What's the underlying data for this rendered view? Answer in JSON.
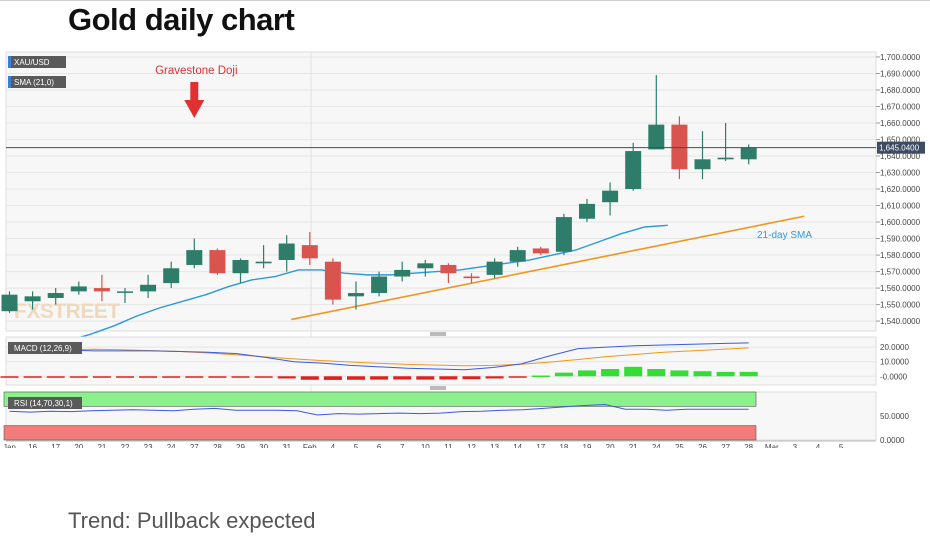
{
  "page": {
    "title": "Gold daily chart",
    "trend_text": "Trend: Pullback expected"
  },
  "colors": {
    "bull": "#2e7d6a",
    "bear": "#d9534f",
    "sma": "#2b9ad6",
    "trendline": "#f0961e",
    "price_line": "#3d4c63",
    "annotation": "#e03030",
    "macd_line": "#3b5bdb",
    "signal_line": "#f0961e",
    "hist_pos": "#33dd33",
    "hist_neg": "#e02020",
    "rsi_line": "#3b5bdb",
    "rsi_overbought_band": "#8cf08c",
    "rsi_oversold_band": "#f27b7b",
    "panel_bg": "#f7f7f7",
    "grid": "#e6e6e6"
  },
  "chart_data": [
    {
      "type": "candlestick",
      "title": "XAU/USD",
      "indicator_label": "SMA (21,0)",
      "watermark": "FXSTREET",
      "current_price_label": "1,645.0400",
      "ylim": [
        1534,
        1703
      ],
      "y_ticks": [
        "1,540.0000",
        "1,550.0000",
        "1,560.0000",
        "1,570.0000",
        "1,580.0000",
        "1,590.0000",
        "1,600.0000",
        "1,610.0000",
        "1,620.0000",
        "1,630.0000",
        "1,640.0000",
        "1,650.0000",
        "1,660.0000",
        "1,670.0000",
        "1,680.0000",
        "1,690.0000",
        "1,700.0000"
      ],
      "x_labels": [
        "Jan",
        "16",
        "17",
        "20",
        "21",
        "22",
        "23",
        "24",
        "27",
        "28",
        "29",
        "30",
        "31",
        "Feb",
        "4",
        "5",
        "6",
        "7",
        "10",
        "11",
        "12",
        "13",
        "14",
        "17",
        "18",
        "19",
        "20",
        "21",
        "24",
        "25",
        "26",
        "27",
        "28",
        "Mar",
        "3",
        "4",
        "5"
      ],
      "candles": [
        {
          "date": "15",
          "o": 1546,
          "h": 1558,
          "l": 1545,
          "c": 1556
        },
        {
          "date": "16",
          "o": 1552,
          "h": 1558,
          "l": 1547,
          "c": 1555
        },
        {
          "date": "17",
          "o": 1554,
          "h": 1560,
          "l": 1550,
          "c": 1557
        },
        {
          "date": "20",
          "o": 1558,
          "h": 1564,
          "l": 1556,
          "c": 1561
        },
        {
          "date": "21",
          "o": 1560,
          "h": 1568,
          "l": 1552,
          "c": 1558
        },
        {
          "date": "22",
          "o": 1558,
          "h": 1560,
          "l": 1551,
          "c": 1558
        },
        {
          "date": "23",
          "o": 1558,
          "h": 1568,
          "l": 1554,
          "c": 1562
        },
        {
          "date": "24",
          "o": 1563,
          "h": 1576,
          "l": 1560,
          "c": 1572
        },
        {
          "date": "27",
          "o": 1574,
          "h": 1590,
          "l": 1572,
          "c": 1583
        },
        {
          "date": "28",
          "o": 1583,
          "h": 1584,
          "l": 1568,
          "c": 1569
        },
        {
          "date": "29",
          "o": 1569,
          "h": 1578,
          "l": 1563,
          "c": 1577
        },
        {
          "date": "30",
          "o": 1575,
          "h": 1586,
          "l": 1572,
          "c": 1576
        },
        {
          "date": "31",
          "o": 1577,
          "h": 1592,
          "l": 1570,
          "c": 1587
        },
        {
          "date": "3",
          "o": 1586,
          "h": 1594,
          "l": 1574,
          "c": 1578
        },
        {
          "date": "4",
          "o": 1576,
          "h": 1578,
          "l": 1550,
          "c": 1553
        },
        {
          "date": "5",
          "o": 1555,
          "h": 1564,
          "l": 1547,
          "c": 1557
        },
        {
          "date": "6",
          "o": 1557,
          "h": 1570,
          "l": 1555,
          "c": 1567
        },
        {
          "date": "7",
          "o": 1567,
          "h": 1576,
          "l": 1564,
          "c": 1571
        },
        {
          "date": "10",
          "o": 1572,
          "h": 1577,
          "l": 1567,
          "c": 1575
        },
        {
          "date": "11",
          "o": 1574,
          "h": 1575,
          "l": 1563,
          "c": 1569
        },
        {
          "date": "12",
          "o": 1567,
          "h": 1569,
          "l": 1563,
          "c": 1566
        },
        {
          "date": "13",
          "o": 1568,
          "h": 1578,
          "l": 1566,
          "c": 1576
        },
        {
          "date": "14",
          "o": 1576,
          "h": 1585,
          "l": 1573,
          "c": 1583
        },
        {
          "date": "17",
          "o": 1584,
          "h": 1585,
          "l": 1580,
          "c": 1581
        },
        {
          "date": "18",
          "o": 1582,
          "h": 1605,
          "l": 1580,
          "c": 1603
        },
        {
          "date": "19",
          "o": 1602,
          "h": 1614,
          "l": 1600,
          "c": 1611
        },
        {
          "date": "20",
          "o": 1612,
          "h": 1624,
          "l": 1604,
          "c": 1619
        },
        {
          "date": "21",
          "o": 1620,
          "h": 1648,
          "l": 1619,
          "c": 1643
        },
        {
          "date": "24",
          "o": 1644,
          "h": 1689,
          "l": 1644,
          "c": 1659
        },
        {
          "date": "25",
          "o": 1659,
          "h": 1664,
          "l": 1626,
          "c": 1632
        },
        {
          "date": "26",
          "o": 1632,
          "h": 1655,
          "l": 1626,
          "c": 1638
        },
        {
          "date": "27",
          "o": 1638,
          "h": 1660,
          "l": 1637,
          "c": 1639
        },
        {
          "date": "28",
          "o": 1638,
          "h": 1647,
          "l": 1635,
          "c": 1645
        }
      ],
      "sma": [
        1528,
        1532,
        1537,
        1543,
        1548,
        1552,
        1556,
        1561,
        1565,
        1567,
        1571,
        1571,
        1569,
        1568,
        1568,
        1569,
        1570,
        1571,
        1573,
        1575,
        1577,
        1580,
        1583,
        1588,
        1593,
        1597,
        1598
      ],
      "annotations": [
        {
          "text": "Gravestone Doji",
          "candle_date": "27"
        },
        {
          "text": "21-day SMA"
        }
      ]
    },
    {
      "type": "macd",
      "label": "MACD (12,26,9)",
      "y_ticks": [
        "20.0000",
        "10.0000",
        "-0.0000"
      ],
      "ylim": [
        -6,
        27
      ],
      "macd": [
        19,
        18.5,
        18,
        17.5,
        17.5,
        17.5,
        17,
        16.5,
        15.6,
        13,
        10,
        9,
        7.5,
        6.5,
        5.5,
        5,
        4.5,
        6,
        8.5,
        14,
        19,
        20,
        21,
        21.5,
        22,
        22.5,
        23
      ],
      "signal": [
        17,
        17.8,
        18.2,
        18.6,
        18.2,
        17.6,
        17,
        16,
        14.7,
        13.3,
        12,
        10.8,
        9.8,
        8.9,
        8.2,
        7.7,
        7.2,
        7.5,
        8.3,
        9.7,
        11.5,
        13.5,
        15,
        16.5,
        17.5,
        18.5,
        19.5
      ],
      "histogram": [
        -0.3,
        -0.3,
        -0.3,
        -0.3,
        -0.3,
        -0.3,
        -0.3,
        -0.3,
        -0.3,
        -0.3,
        -0.3,
        -0.3,
        -1.5,
        -2.4,
        -2.5,
        -2.4,
        -2.3,
        -2.2,
        -2.3,
        -2.2,
        -2.0,
        -1.5,
        -1.0,
        0.5,
        2.5,
        4.0,
        5.0,
        6.5,
        5.0,
        4.0,
        3.5,
        3.0,
        3.0
      ]
    },
    {
      "type": "rsi",
      "label": "RSI (14,70,30,1)",
      "y_ticks": [
        "50.0000",
        "0.0000"
      ],
      "ylim": [
        0,
        100
      ],
      "overbought": 70,
      "oversold": 30,
      "values": [
        60,
        58,
        60,
        59,
        61,
        62,
        63,
        62,
        61,
        64,
        66,
        62,
        62,
        62,
        61,
        52,
        55,
        54,
        55,
        56,
        55,
        56,
        59,
        60,
        62,
        63,
        66,
        69,
        72,
        74,
        64,
        64,
        62,
        64,
        64,
        64,
        64
      ]
    }
  ]
}
